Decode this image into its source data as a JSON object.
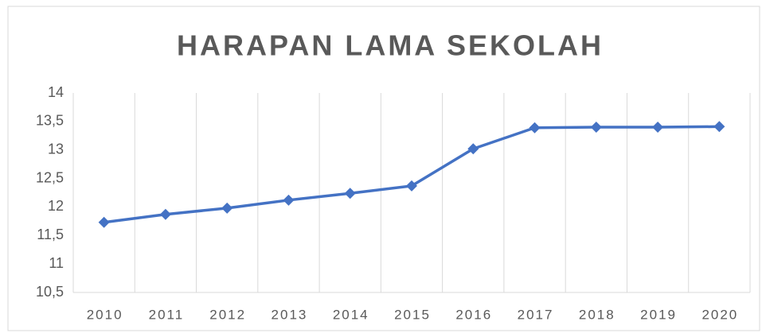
{
  "chart_data": {
    "type": "line",
    "title": "HARAPAN LAMA SEKOLAH",
    "categories": [
      "2010",
      "2011",
      "2012",
      "2013",
      "2014",
      "2015",
      "2016",
      "2017",
      "2018",
      "2019",
      "2020"
    ],
    "series": [
      {
        "color": "#4472c4",
        "values": [
          11.73,
          11.87,
          11.98,
          12.12,
          12.24,
          12.37,
          13.02,
          13.39,
          13.4,
          13.4,
          13.41
        ]
      }
    ],
    "ylim": [
      10.5,
      14
    ],
    "yticks": [
      {
        "value": 10.5,
        "label": "10,5"
      },
      11,
      {
        "value": 11.5,
        "label": "11,5"
      },
      12,
      {
        "value": 12.5,
        "label": "12,5"
      },
      13,
      {
        "value": 13.5,
        "label": "13,5"
      },
      14
    ],
    "xgrid": true
  }
}
